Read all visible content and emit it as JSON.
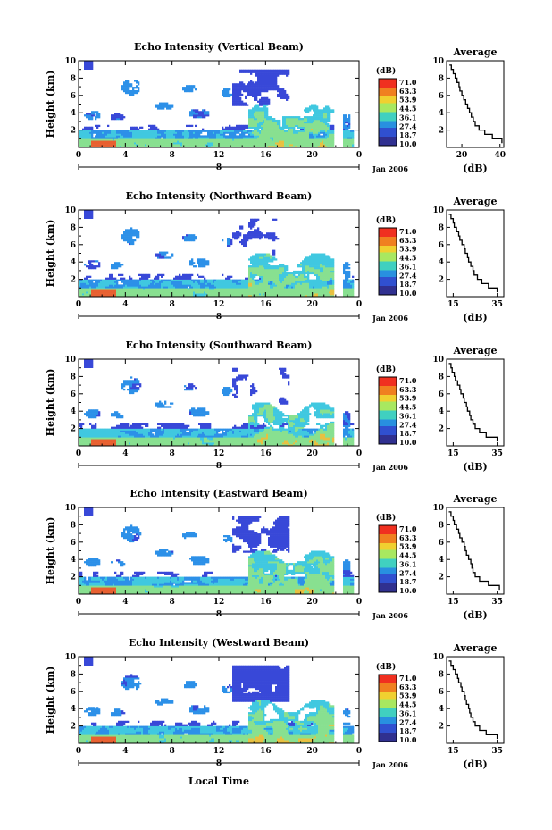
{
  "figure": {
    "xlabel": "Local Time",
    "date_label": "Jan 2006",
    "day_marker": "8",
    "colorbar_unit": "(dB)",
    "colorbar_ticks": [
      "71.0",
      "63.3",
      "53.9",
      "44.5",
      "36.1",
      "27.4",
      "18.7",
      "10.0"
    ],
    "colorbar_colors": [
      "#f03020",
      "#f08020",
      "#f0d030",
      "#a8e860",
      "#40d0c0",
      "#2890e0",
      "#3050d0",
      "#303090"
    ],
    "echo_colors": {
      "weak": "#3848d8",
      "low": "#2c90e8",
      "mid": "#40c8e0",
      "high": "#88e090",
      "core": "#e8c040",
      "peak": "#e86030"
    }
  },
  "chart_data": [
    {
      "type": "heatmap",
      "title": "Echo Intensity (Vertical Beam)",
      "xlabel": "",
      "ylabel": "Height (km)",
      "xlim": [
        0,
        24
      ],
      "ylim": [
        0,
        10
      ],
      "xticks": [
        "0",
        "4",
        "8",
        "12",
        "16",
        "20",
        "0"
      ],
      "yticks": [
        "2",
        "4",
        "6",
        "8",
        "10"
      ],
      "clim": [
        10.0,
        71.0
      ],
      "colorbar_label": "(dB)",
      "average_profile": {
        "title": "Average",
        "xlabel": "(dB)",
        "xlim": [
          12,
          42
        ],
        "xticks": [
          "20",
          "40"
        ],
        "yticks": [
          "2",
          "4",
          "6",
          "8",
          "10"
        ],
        "height": [
          0.5,
          1.0,
          1.5,
          2.0,
          2.5,
          3.0,
          3.5,
          4.0,
          4.5,
          5.0,
          5.5,
          6.0,
          6.5,
          7.0,
          7.5,
          8.0,
          8.5,
          9.0,
          9.5
        ],
        "value": [
          41,
          36,
          32,
          29,
          27,
          26,
          25,
          24,
          23,
          22,
          21,
          20,
          19,
          18.5,
          17.5,
          16.5,
          15.5,
          14.5,
          13.5
        ]
      }
    },
    {
      "type": "heatmap",
      "title": "Echo Intensity (Northward Beam)",
      "xlabel": "",
      "ylabel": "Height (km)",
      "xlim": [
        0,
        24
      ],
      "ylim": [
        0,
        10
      ],
      "xticks": [
        "0",
        "4",
        "8",
        "12",
        "16",
        "20",
        "0"
      ],
      "yticks": [
        "2",
        "4",
        "6",
        "8",
        "10"
      ],
      "clim": [
        10.0,
        71.0
      ],
      "colorbar_label": "(dB)",
      "average_profile": {
        "title": "Average",
        "xlabel": "(dB)",
        "xlim": [
          12,
          38
        ],
        "xticks": [
          "15",
          "35"
        ],
        "yticks": [
          "2",
          "4",
          "6",
          "8",
          "10"
        ],
        "height": [
          0.5,
          1.0,
          1.5,
          2.0,
          2.5,
          3.0,
          3.5,
          4.0,
          4.5,
          5.0,
          5.5,
          6.0,
          6.5,
          7.0,
          7.5,
          8.0,
          8.5,
          9.0,
          9.5
        ],
        "value": [
          35,
          31,
          28,
          26,
          24.5,
          24,
          23,
          22,
          21.5,
          20.5,
          20,
          19,
          18,
          17.5,
          16.5,
          15.5,
          15,
          14,
          13
        ]
      }
    },
    {
      "type": "heatmap",
      "title": "Echo Intensity (Southward Beam)",
      "xlabel": "",
      "ylabel": "Height (km)",
      "xlim": [
        0,
        24
      ],
      "ylim": [
        0,
        10
      ],
      "xticks": [
        "0",
        "4",
        "8",
        "12",
        "16",
        "20",
        "0"
      ],
      "yticks": [
        "2",
        "4",
        "6",
        "8",
        "10"
      ],
      "clim": [
        10.0,
        71.0
      ],
      "colorbar_label": "(dB)",
      "average_profile": {
        "title": "Average",
        "xlabel": "(dB)",
        "xlim": [
          12,
          38
        ],
        "xticks": [
          "15",
          "35"
        ],
        "yticks": [
          "2",
          "4",
          "6",
          "8",
          "10"
        ],
        "height": [
          0.5,
          1.0,
          1.5,
          2.0,
          2.5,
          3.0,
          3.5,
          4.0,
          4.5,
          5.0,
          5.5,
          6.0,
          6.5,
          7.0,
          7.5,
          8.0,
          8.5,
          9.0,
          9.5
        ],
        "value": [
          35,
          30,
          27,
          25,
          24,
          23,
          22.5,
          21.5,
          21,
          20,
          19.5,
          18.5,
          18,
          17,
          16,
          15.5,
          14.5,
          14,
          13
        ]
      }
    },
    {
      "type": "heatmap",
      "title": "Echo Intensity (Eastward Beam)",
      "xlabel": "",
      "ylabel": "Height (km)",
      "xlim": [
        0,
        24
      ],
      "ylim": [
        0,
        10
      ],
      "xticks": [
        "0",
        "4",
        "8",
        "12",
        "16",
        "20",
        "0"
      ],
      "yticks": [
        "2",
        "4",
        "6",
        "8",
        "10"
      ],
      "clim": [
        10.0,
        71.0
      ],
      "colorbar_label": "(dB)",
      "average_profile": {
        "title": "Average",
        "xlabel": "(dB)",
        "xlim": [
          12,
          38
        ],
        "xticks": [
          "15",
          "35"
        ],
        "yticks": [
          "2",
          "4",
          "6",
          "8",
          "10"
        ],
        "height": [
          0.5,
          1.0,
          1.5,
          2.0,
          2.5,
          3.0,
          3.5,
          4.0,
          4.5,
          5.0,
          5.5,
          6.0,
          6.5,
          7.0,
          7.5,
          8.0,
          8.5,
          9.0,
          9.5
        ],
        "value": [
          36,
          31,
          27,
          25,
          24,
          23.5,
          23,
          22,
          21,
          20.5,
          20,
          19,
          18,
          17.5,
          16.5,
          15.5,
          15,
          14,
          13
        ]
      }
    },
    {
      "type": "heatmap",
      "title": "Echo Intensity (Westward Beam)",
      "xlabel": "Local Time",
      "ylabel": "Height (km)",
      "xlim": [
        0,
        24
      ],
      "ylim": [
        0,
        10
      ],
      "xticks": [
        "0",
        "4",
        "8",
        "12",
        "16",
        "20",
        "0"
      ],
      "yticks": [
        "2",
        "4",
        "6",
        "8",
        "10"
      ],
      "clim": [
        10.0,
        71.0
      ],
      "colorbar_label": "(dB)",
      "average_profile": {
        "title": "Average",
        "xlabel": "(dB)",
        "xlim": [
          12,
          38
        ],
        "xticks": [
          "15",
          "35"
        ],
        "yticks": [
          "2",
          "4",
          "6",
          "8",
          "10"
        ],
        "height": [
          0.5,
          1.0,
          1.5,
          2.0,
          2.5,
          3.0,
          3.5,
          4.0,
          4.5,
          5.0,
          5.5,
          6.0,
          6.5,
          7.0,
          7.5,
          8.0,
          8.5,
          9.0,
          9.5
        ],
        "value": [
          35,
          30,
          27,
          25,
          24,
          23,
          22.5,
          22,
          21,
          20.5,
          20,
          19,
          18.5,
          17.5,
          17,
          16,
          15,
          14,
          13
        ]
      }
    }
  ]
}
